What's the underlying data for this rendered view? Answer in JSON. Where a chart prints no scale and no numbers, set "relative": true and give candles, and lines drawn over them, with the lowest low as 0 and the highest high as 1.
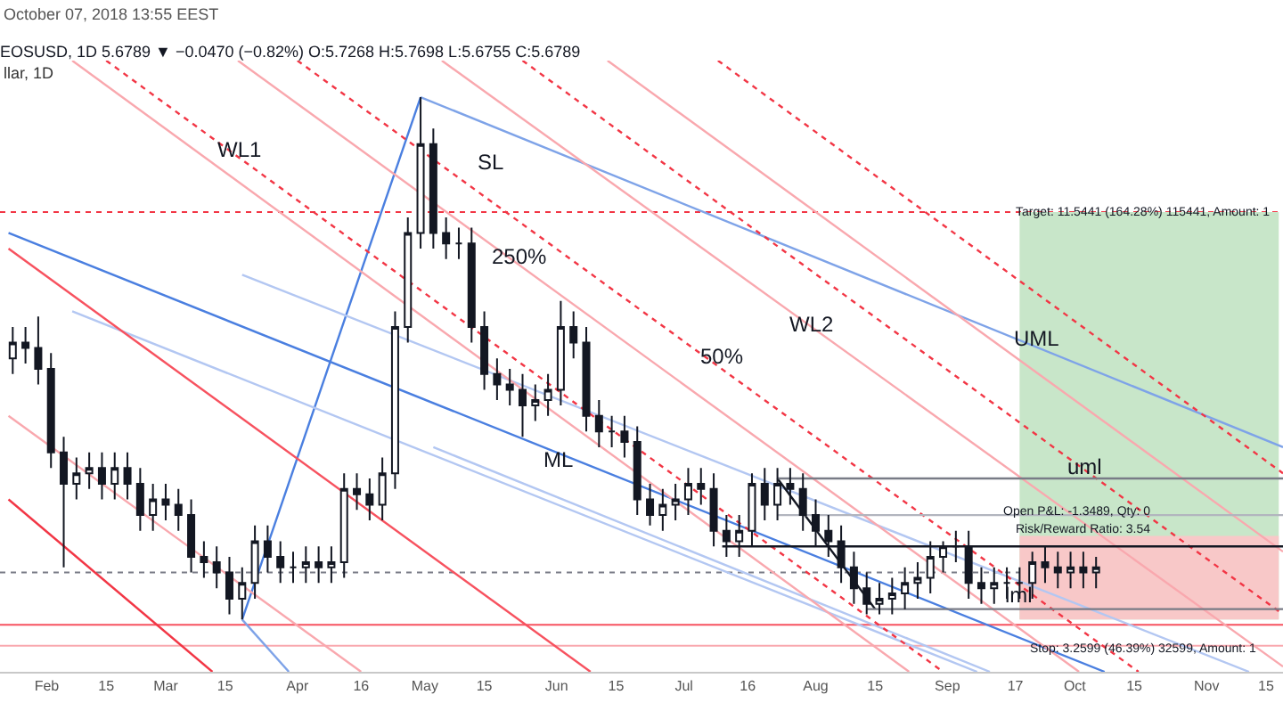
{
  "chart_data": {
    "type": "candlestick",
    "relative": true,
    "title": "EOSUSD, 1D 5.6789 ▼ −0.0470 (−0.82%) O:5.7268 H:5.7698 L:5.6755 C:5.6789",
    "subtitle": "llar, 1D",
    "x": [
      "2018-01-24",
      "2018-01-27",
      "2018-01-30",
      "2018-02-02",
      "2018-02-05",
      "2018-02-08",
      "2018-02-11",
      "2018-02-14",
      "2018-02-17",
      "2018-02-20",
      "2018-02-23",
      "2018-02-26",
      "2018-03-01",
      "2018-03-04",
      "2018-03-07",
      "2018-03-10",
      "2018-03-13",
      "2018-03-16",
      "2018-03-19",
      "2018-03-22",
      "2018-03-25",
      "2018-03-28",
      "2018-03-31",
      "2018-04-03",
      "2018-04-06",
      "2018-04-09",
      "2018-04-12",
      "2018-04-15",
      "2018-04-18",
      "2018-04-21",
      "2018-04-24",
      "2018-04-27",
      "2018-04-30",
      "2018-05-03",
      "2018-05-06",
      "2018-05-09",
      "2018-05-12",
      "2018-05-15",
      "2018-05-18",
      "2018-05-21",
      "2018-05-24",
      "2018-05-27",
      "2018-05-30",
      "2018-06-02",
      "2018-06-05",
      "2018-06-08",
      "2018-06-11",
      "2018-06-14",
      "2018-06-17",
      "2018-06-20",
      "2018-06-23",
      "2018-06-26",
      "2018-06-29",
      "2018-07-02",
      "2018-07-05",
      "2018-07-08",
      "2018-07-11",
      "2018-07-14",
      "2018-07-17",
      "2018-07-20",
      "2018-07-23",
      "2018-07-26",
      "2018-07-29",
      "2018-08-01",
      "2018-08-04",
      "2018-08-07",
      "2018-08-10",
      "2018-08-13",
      "2018-08-16",
      "2018-08-19",
      "2018-08-22",
      "2018-08-25",
      "2018-08-28",
      "2018-08-31",
      "2018-09-03",
      "2018-09-06",
      "2018-09-09",
      "2018-09-12",
      "2018-09-15",
      "2018-09-18",
      "2018-09-21",
      "2018-09-24",
      "2018-09-27",
      "2018-09-30",
      "2018-10-03",
      "2018-10-06"
    ],
    "ohlc": [
      [
        0.5,
        0.56,
        0.47,
        0.53
      ],
      [
        0.53,
        0.56,
        0.49,
        0.52
      ],
      [
        0.52,
        0.58,
        0.45,
        0.48
      ],
      [
        0.48,
        0.51,
        0.29,
        0.32
      ],
      [
        0.32,
        0.35,
        0.1,
        0.26
      ],
      [
        0.26,
        0.31,
        0.23,
        0.28
      ],
      [
        0.28,
        0.32,
        0.25,
        0.29
      ],
      [
        0.29,
        0.32,
        0.23,
        0.26
      ],
      [
        0.26,
        0.32,
        0.23,
        0.29
      ],
      [
        0.29,
        0.32,
        0.23,
        0.26
      ],
      [
        0.26,
        0.29,
        0.17,
        0.2
      ],
      [
        0.2,
        0.26,
        0.17,
        0.23
      ],
      [
        0.23,
        0.26,
        0.19,
        0.22
      ],
      [
        0.22,
        0.25,
        0.17,
        0.2
      ],
      [
        0.2,
        0.23,
        0.09,
        0.12
      ],
      [
        0.12,
        0.15,
        0.08,
        0.11
      ],
      [
        0.11,
        0.14,
        0.06,
        0.09
      ],
      [
        0.09,
        0.12,
        0.01,
        0.04
      ],
      [
        0.04,
        0.1,
        0,
        0.07
      ],
      [
        0.07,
        0.18,
        0.04,
        0.15
      ],
      [
        0.15,
        0.18,
        0.09,
        0.12
      ],
      [
        0.12,
        0.15,
        0.07,
        0.1
      ],
      [
        0.1,
        0.13,
        0.07,
        0.1
      ],
      [
        0.1,
        0.14,
        0.07,
        0.11
      ],
      [
        0.11,
        0.14,
        0.07,
        0.1
      ],
      [
        0.1,
        0.14,
        0.07,
        0.11
      ],
      [
        0.11,
        0.28,
        0.08,
        0.25
      ],
      [
        0.25,
        0.28,
        0.21,
        0.24
      ],
      [
        0.24,
        0.27,
        0.19,
        0.22
      ],
      [
        0.22,
        0.31,
        0.19,
        0.28
      ],
      [
        0.28,
        0.59,
        0.25,
        0.56
      ],
      [
        0.56,
        0.77,
        0.53,
        0.74
      ],
      [
        0.74,
        1,
        0.71,
        0.91
      ],
      [
        0.91,
        0.94,
        0.71,
        0.74
      ],
      [
        0.74,
        0.77,
        0.69,
        0.72
      ],
      [
        0.72,
        0.75,
        0.69,
        0.72
      ],
      [
        0.72,
        0.75,
        0.53,
        0.56
      ],
      [
        0.56,
        0.59,
        0.44,
        0.47
      ],
      [
        0.47,
        0.5,
        0.42,
        0.45
      ],
      [
        0.45,
        0.48,
        0.41,
        0.44
      ],
      [
        0.44,
        0.47,
        0.35,
        0.41
      ],
      [
        0.41,
        0.45,
        0.38,
        0.42
      ],
      [
        0.42,
        0.47,
        0.39,
        0.44
      ],
      [
        0.44,
        0.61,
        0.41,
        0.56
      ],
      [
        0.56,
        0.59,
        0.5,
        0.53
      ],
      [
        0.53,
        0.56,
        0.36,
        0.39
      ],
      [
        0.39,
        0.42,
        0.33,
        0.36
      ],
      [
        0.36,
        0.39,
        0.33,
        0.36
      ],
      [
        0.36,
        0.39,
        0.31,
        0.34
      ],
      [
        0.34,
        0.37,
        0.2,
        0.23
      ],
      [
        0.23,
        0.26,
        0.18,
        0.2
      ],
      [
        0.2,
        0.25,
        0.17,
        0.22
      ],
      [
        0.22,
        0.26,
        0.19,
        0.23
      ],
      [
        0.23,
        0.29,
        0.2,
        0.26
      ],
      [
        0.26,
        0.29,
        0.22,
        0.25
      ],
      [
        0.25,
        0.28,
        0.14,
        0.17
      ],
      [
        0.17,
        0.2,
        0.12,
        0.15
      ],
      [
        0.15,
        0.2,
        0.12,
        0.17
      ],
      [
        0.17,
        0.28,
        0.14,
        0.26
      ],
      [
        0.26,
        0.29,
        0.19,
        0.22
      ],
      [
        0.22,
        0.29,
        0.19,
        0.26
      ],
      [
        0.26,
        0.29,
        0.22,
        0.25
      ],
      [
        0.25,
        0.28,
        0.17,
        0.2
      ],
      [
        0.2,
        0.23,
        0.14,
        0.17
      ],
      [
        0.17,
        0.2,
        0.12,
        0.15
      ],
      [
        0.15,
        0.18,
        0.07,
        0.1
      ],
      [
        0.1,
        0.13,
        0.03,
        0.06
      ],
      [
        0.06,
        0.09,
        0.01,
        0.03
      ],
      [
        0.03,
        0.07,
        0.01,
        0.04
      ],
      [
        0.04,
        0.08,
        0.01,
        0.05
      ],
      [
        0.05,
        0.1,
        0.02,
        0.07
      ],
      [
        0.07,
        0.11,
        0.04,
        0.08
      ],
      [
        0.08,
        0.15,
        0.05,
        0.12
      ],
      [
        0.12,
        0.15,
        0.09,
        0.14
      ],
      [
        0.14,
        0.17,
        0.11,
        0.14
      ],
      [
        0.14,
        0.17,
        0.04,
        0.07
      ],
      [
        0.07,
        0.1,
        0.03,
        0.06
      ],
      [
        0.06,
        0.1,
        0.03,
        0.07
      ],
      [
        0.07,
        0.1,
        0.04,
        0.07
      ],
      [
        0.07,
        0.1,
        0.04,
        0.07
      ],
      [
        0.07,
        0.13,
        0.04,
        0.11
      ],
      [
        0.11,
        0.14,
        0.07,
        0.1
      ],
      [
        0.1,
        0.13,
        0.06,
        0.09
      ],
      [
        0.09,
        0.13,
        0.06,
        0.1
      ],
      [
        0.1,
        0.13,
        0.06,
        0.09
      ],
      [
        0.09,
        0.12,
        0.06,
        0.1
      ]
    ],
    "series": [
      {
        "type": "area",
        "x": [
          "2018-09-18",
          "2018-11-18"
        ],
        "values": [
          0.78,
          0.78
        ],
        "color": "#c8e6c9"
      },
      {
        "type": "area",
        "x": [
          "2018-09-18",
          "2018-11-18"
        ],
        "values": [
          0.16,
          0.16
        ],
        "color": "#f8c8c8"
      },
      {
        "type": "line",
        "x": [
          "2018-03-19",
          "2018-04-30"
        ],
        "values": [
          0,
          1
        ],
        "color": "#4a7fe0",
        "line_style": "solid"
      },
      {
        "type": "line",
        "x": [
          "2018-04-30",
          "2018-11-19"
        ],
        "values": [
          1,
          0.33
        ],
        "color": "#7ea3e8",
        "line_style": "solid"
      },
      {
        "type": "line",
        "x": [
          "2018-01-23",
          "2018-10-08"
        ],
        "values": [
          0.74,
          -0.1
        ],
        "color": "#4a7fe0",
        "line_style": "solid"
      },
      {
        "type": "line",
        "x": [
          "2018-03-19",
          "2018-11-11"
        ],
        "values": [
          0.66,
          -0.1
        ],
        "color": "#b3c7f2",
        "line_style": "solid"
      },
      {
        "type": "line",
        "x": [
          "2018-02-07",
          "2018-09-08"
        ],
        "values": [
          0.59,
          -0.1
        ],
        "color": "#b3c7f2",
        "line_style": "solid"
      },
      {
        "type": "line",
        "x": [
          "2018-05-03",
          "2018-09-11"
        ],
        "values": [
          0.33,
          -0.1
        ],
        "color": "#b3c7f2",
        "line_style": "solid"
      },
      {
        "type": "line",
        "x": [
          "2018-03-19",
          "2018-03-30"
        ],
        "values": [
          0,
          -0.1
        ],
        "color": "#7ea3e8",
        "line_style": "solid"
      },
      {
        "type": "line",
        "x": [
          "2018-01-23",
          "2018-03-12"
        ],
        "values": [
          0.23,
          -0.1
        ],
        "color": "#f23645",
        "line_style": "solid"
      },
      {
        "type": "line",
        "x": [
          "2018-01-23",
          "2018-06-09"
        ],
        "values": [
          0.71,
          -0.1
        ],
        "color": "#f7525f",
        "line_style": "solid"
      },
      {
        "type": "line",
        "x": [
          "2018-01-23",
          "2018-04-16"
        ],
        "values": [
          0.39,
          -0.1
        ],
        "color": "#f9a8ae",
        "line_style": "solid"
      },
      {
        "type": "line",
        "x": [
          "2018-02-07",
          "2018-08-23"
        ],
        "values": [
          1.07,
          -0.1
        ],
        "color": "#f9a8ae",
        "line_style": "solid"
      },
      {
        "type": "line",
        "x": [
          "2018-02-15",
          "2018-08-31"
        ],
        "values": [
          1.07,
          -0.1
        ],
        "color": "#f23645",
        "line_style": "dotted"
      },
      {
        "type": "line",
        "x": [
          "2018-03-18",
          "2018-10-02"
        ],
        "values": [
          1.07,
          -0.1
        ],
        "color": "#f9a8ae",
        "line_style": "solid"
      },
      {
        "type": "line",
        "x": [
          "2018-04-01",
          "2018-10-16"
        ],
        "values": [
          1.07,
          -0.1
        ],
        "color": "#f23645",
        "line_style": "dotted"
      },
      {
        "type": "line",
        "x": [
          "2018-05-05",
          "2018-11-19"
        ],
        "values": [
          1.07,
          -0.09
        ],
        "color": "#f9a8ae",
        "line_style": "solid"
      },
      {
        "type": "line",
        "x": [
          "2018-05-24",
          "2018-11-19"
        ],
        "values": [
          1.07,
          0.01
        ],
        "color": "#f23645",
        "line_style": "dotted"
      },
      {
        "type": "line",
        "x": [
          "2018-06-13",
          "2018-11-19"
        ],
        "values": [
          1.07,
          0.13
        ],
        "color": "#f9a8ae",
        "line_style": "solid"
      },
      {
        "type": "line",
        "x": [
          "2018-07-09",
          "2018-11-19"
        ],
        "values": [
          1.07,
          0.28
        ],
        "color": "#f23645",
        "line_style": "dotted"
      },
      {
        "type": "line",
        "x": [
          "2018-07-23",
          "2018-08-15"
        ],
        "values": [
          0.27,
          0.02
        ],
        "color": "#131722",
        "line_style": "solid"
      },
      {
        "type": "line",
        "x": [
          "2018-07-23",
          "2018-11-19"
        ],
        "values": [
          0.27,
          0.27
        ],
        "color": "#787b86",
        "line_style": "solid"
      },
      {
        "type": "line",
        "x": [
          "2018-07-23",
          "2018-11-19"
        ],
        "values": [
          0.2,
          0.2
        ],
        "color": "#b2b5be",
        "line_style": "solid"
      },
      {
        "type": "line",
        "x": [
          "2018-07-10",
          "2018-11-19"
        ],
        "values": [
          0.14,
          0.14
        ],
        "color": "#131722",
        "line_style": "solid"
      },
      {
        "type": "line",
        "x": [
          "2018-08-13",
          "2018-11-19"
        ],
        "values": [
          0.02,
          0.02
        ],
        "color": "#787b86",
        "line_style": "solid"
      }
    ],
    "ref_lines": [
      {
        "axis": "y",
        "value": 0.78,
        "color": "#f23645",
        "line_style": "dotted"
      },
      {
        "axis": "y",
        "value": 0.09,
        "color": "#787b86",
        "line_style": "dotted"
      },
      {
        "axis": "y",
        "value": -0.01,
        "color": "#f7525f",
        "line_style": "solid"
      },
      {
        "axis": "y",
        "value": -0.05,
        "color": "#f9a8ae",
        "line_style": "solid"
      }
    ],
    "annotations": [
      "October 07, 2018 13:55 EEST",
      "WL1",
      "SL",
      "250%",
      "50%",
      "WL2",
      "ML",
      "UML",
      "uml",
      "lml",
      {
        "text": "Target: 11.5441 (164.28%) 115441, Amount: 1",
        "x": "2018-10-17",
        "y": 0.78
      },
      "Open P&L: -1.3489, Qty: 0",
      "Risk/Reward Ratio: 3.54",
      {
        "text": "Stop: 3.2599 (46.39%) 32599, Amount: 1",
        "x": "2018-10-17",
        "y": -0.055
      }
    ],
    "xlim": [
      "2018-01-21",
      "2018-11-19"
    ],
    "xticks": [
      {
        "value": "2018-02-01",
        "label": "Feb"
      },
      {
        "value": "2018-02-15",
        "label": "15"
      },
      {
        "value": "2018-03-01",
        "label": "Mar"
      },
      {
        "value": "2018-03-15",
        "label": "15"
      },
      {
        "value": "2018-04-01",
        "label": "Apr"
      },
      {
        "value": "2018-04-16",
        "label": "16"
      },
      {
        "value": "2018-05-01",
        "label": "May"
      },
      {
        "value": "2018-05-15",
        "label": "15"
      },
      {
        "value": "2018-06-01",
        "label": "Jun"
      },
      {
        "value": "2018-06-15",
        "label": "15"
      },
      {
        "value": "2018-07-01",
        "label": "Jul"
      },
      {
        "value": "2018-07-16",
        "label": "16"
      },
      {
        "value": "2018-08-01",
        "label": "Aug"
      },
      {
        "value": "2018-08-15",
        "label": "15"
      },
      {
        "value": "2018-09-01",
        "label": "Sep"
      },
      {
        "value": "2018-09-17",
        "label": "17"
      },
      {
        "value": "2018-10-01",
        "label": "Oct"
      },
      {
        "value": "2018-10-15",
        "label": "15"
      },
      {
        "value": "2018-11-01",
        "label": "Nov"
      },
      {
        "value": "2018-11-15",
        "label": "15"
      }
    ]
  }
}
